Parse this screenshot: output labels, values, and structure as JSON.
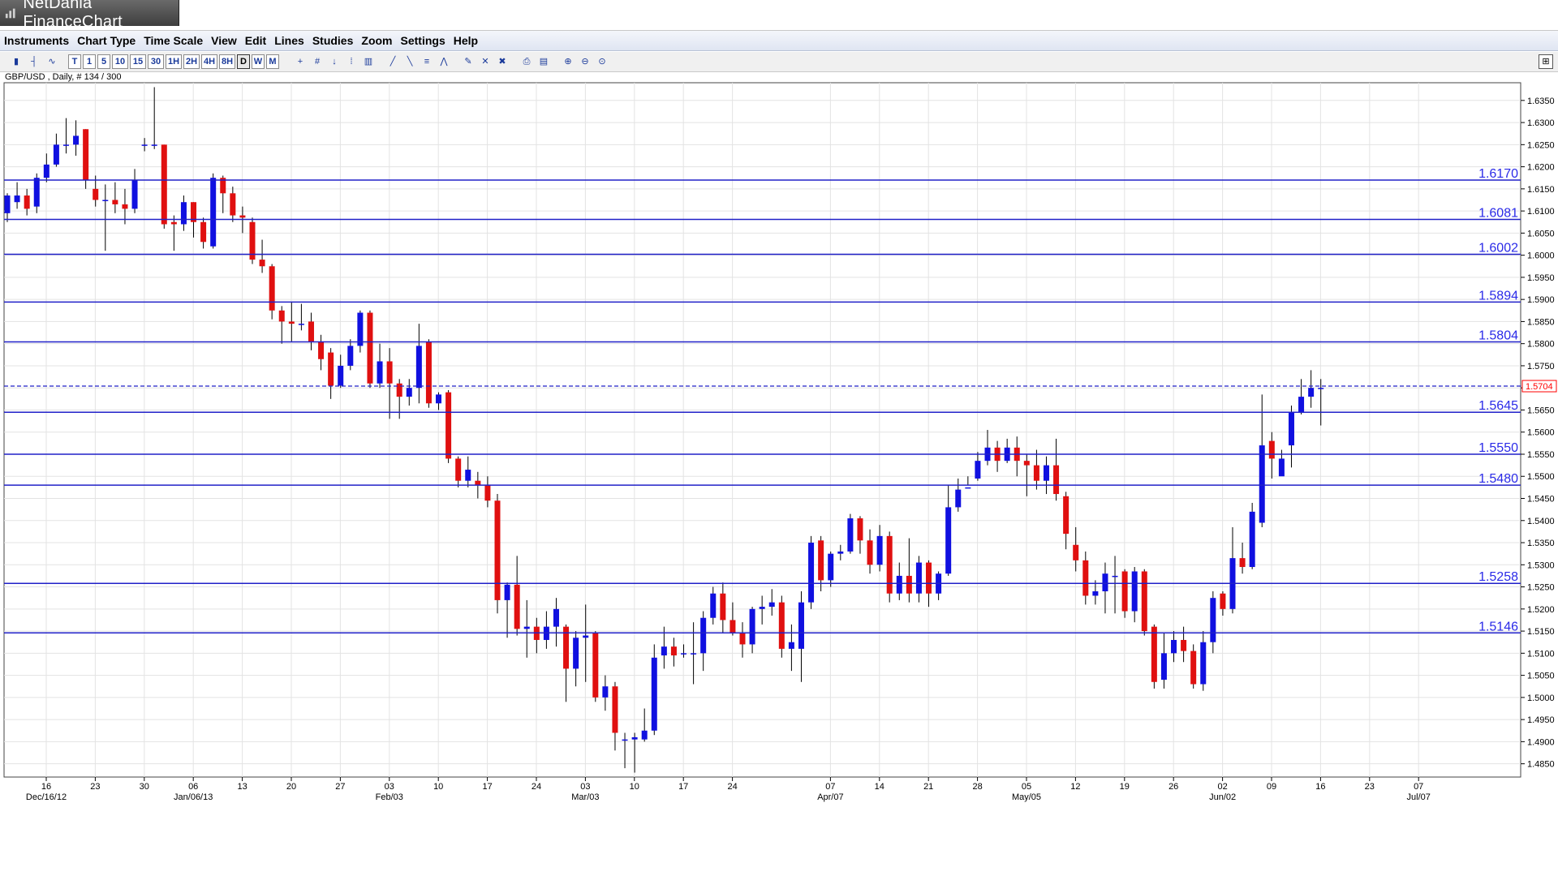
{
  "window": {
    "title": "NetDania FinanceChart"
  },
  "menu": [
    "Instruments",
    "Chart Type",
    "Time Scale",
    "View",
    "Edit",
    "Lines",
    "Studies",
    "Zoom",
    "Settings",
    "Help"
  ],
  "toolbar": {
    "periods": [
      "T",
      "1",
      "5",
      "10",
      "15",
      "30",
      "1H",
      "2H",
      "4H",
      "8H",
      "D",
      "W",
      "M"
    ],
    "selected_period": "D"
  },
  "instrument": {
    "label": "GBP/USD , Daily, # 134 / 300"
  },
  "chart_data": {
    "type": "candlestick",
    "title": "",
    "xlabel": "",
    "ylabel": "",
    "ylim": [
      1.482,
      1.639
    ],
    "y_ticks": [
      "1.6350",
      "1.6300",
      "1.6250",
      "1.6200",
      "1.6150",
      "1.6100",
      "1.6050",
      "1.6000",
      "1.5950",
      "1.5900",
      "1.5850",
      "1.5800",
      "1.5750",
      "1.5700",
      "1.5650",
      "1.5600",
      "1.5550",
      "1.5500",
      "1.5450",
      "1.5400",
      "1.5350",
      "1.5300",
      "1.5250",
      "1.5200",
      "1.5150",
      "1.5100",
      "1.5050",
      "1.5000",
      "1.4950",
      "1.4900",
      "1.4850"
    ],
    "x_ticks": [
      {
        "week": 0,
        "day": "16",
        "month": "Dec/16/12"
      },
      {
        "week": 1,
        "day": "23",
        "month": ""
      },
      {
        "week": 2,
        "day": "30",
        "month": ""
      },
      {
        "week": 3,
        "day": "06",
        "month": "Jan/06/13"
      },
      {
        "week": 4,
        "day": "13",
        "month": ""
      },
      {
        "week": 5,
        "day": "20",
        "month": ""
      },
      {
        "week": 6,
        "day": "27",
        "month": ""
      },
      {
        "week": 7,
        "day": "03",
        "month": "Feb/03"
      },
      {
        "week": 8,
        "day": "10",
        "month": ""
      },
      {
        "week": 9,
        "day": "17",
        "month": ""
      },
      {
        "week": 10,
        "day": "24",
        "month": ""
      },
      {
        "week": 11,
        "day": "03",
        "month": "Mar/03"
      },
      {
        "week": 12,
        "day": "10",
        "month": ""
      },
      {
        "week": 13,
        "day": "17",
        "month": ""
      },
      {
        "week": 14,
        "day": "24",
        "month": ""
      },
      {
        "week": 16,
        "day": "07",
        "month": "Apr/07"
      },
      {
        "week": 17,
        "day": "14",
        "month": ""
      },
      {
        "week": 18,
        "day": "21",
        "month": ""
      },
      {
        "week": 19,
        "day": "28",
        "month": ""
      },
      {
        "week": 20,
        "day": "05",
        "month": "May/05"
      },
      {
        "week": 21,
        "day": "12",
        "month": ""
      },
      {
        "week": 22,
        "day": "19",
        "month": ""
      },
      {
        "week": 23,
        "day": "26",
        "month": ""
      },
      {
        "week": 24,
        "day": "02",
        "month": "Jun/02"
      },
      {
        "week": 25,
        "day": "09",
        "month": ""
      },
      {
        "week": 26,
        "day": "16",
        "month": ""
      },
      {
        "week": 27,
        "day": "23",
        "month": ""
      },
      {
        "week": 28,
        "day": "07",
        "month": "Jul/07"
      }
    ],
    "horizontal_lines": [
      {
        "label": "1.6170",
        "value": 1.617
      },
      {
        "label": "1.6081",
        "value": 1.6081
      },
      {
        "label": "1.6002",
        "value": 1.6002
      },
      {
        "label": "1.5894",
        "value": 1.5894
      },
      {
        "label": "1.5804",
        "value": 1.5804
      },
      {
        "label": "1.5645",
        "value": 1.5645
      },
      {
        "label": "1.5550",
        "value": 1.555
      },
      {
        "label": "1.5480",
        "value": 1.548
      },
      {
        "label": "1.5258",
        "value": 1.5258
      },
      {
        "label": "1.5146",
        "value": 1.5146
      }
    ],
    "current_price": {
      "label": "1.5704",
      "value": 1.5704
    },
    "colors": {
      "up": "#1010e0",
      "down": "#e01010",
      "level": "#2020c8",
      "level_label": "#2a2ae8",
      "current": "#ff0000",
      "grid": "#e3e3e3",
      "wick": "#000000"
    },
    "candles": [
      [
        1.6095,
        1.6135,
        1.6075,
        1.614
      ],
      [
        1.612,
        1.6135,
        1.6105,
        1.6165
      ],
      [
        1.6135,
        1.6105,
        1.609,
        1.615
      ],
      [
        1.611,
        1.6175,
        1.6095,
        1.6185
      ],
      [
        1.6175,
        1.6205,
        1.6165,
        1.623
      ],
      [
        1.6205,
        1.625,
        1.62,
        1.6275
      ],
      [
        1.625,
        1.625,
        1.623,
        1.631
      ],
      [
        1.625,
        1.627,
        1.6225,
        1.6305
      ],
      [
        1.6285,
        1.617,
        1.615,
        1.6285
      ],
      [
        1.615,
        1.6125,
        1.611,
        1.618
      ],
      [
        1.6125,
        1.6125,
        1.601,
        1.616
      ],
      [
        1.6125,
        1.6115,
        1.6095,
        1.6165
      ],
      [
        1.6115,
        1.6105,
        1.607,
        1.615
      ],
      [
        1.6105,
        1.617,
        1.6095,
        1.6195
      ],
      [
        1.625,
        1.625,
        1.6235,
        1.6265
      ],
      [
        1.625,
        1.625,
        1.624,
        1.638
      ],
      [
        1.625,
        1.607,
        1.606,
        1.625
      ],
      [
        1.6075,
        1.607,
        1.601,
        1.609
      ],
      [
        1.607,
        1.612,
        1.6055,
        1.6135
      ],
      [
        1.612,
        1.6075,
        1.604,
        1.612
      ],
      [
        1.6075,
        1.603,
        1.6015,
        1.6085
      ],
      [
        1.602,
        1.6175,
        1.6015,
        1.6185
      ],
      [
        1.6175,
        1.614,
        1.6095,
        1.618
      ],
      [
        1.614,
        1.609,
        1.6075,
        1.6155
      ],
      [
        1.609,
        1.6085,
        1.605,
        1.611
      ],
      [
        1.6075,
        1.599,
        1.598,
        1.6085
      ],
      [
        1.599,
        1.5975,
        1.596,
        1.6035
      ],
      [
        1.5975,
        1.5875,
        1.5855,
        1.598
      ],
      [
        1.5875,
        1.585,
        1.58,
        1.5885
      ],
      [
        1.585,
        1.5845,
        1.5805,
        1.5895
      ],
      [
        1.5845,
        1.5845,
        1.583,
        1.589
      ],
      [
        1.585,
        1.5805,
        1.5785,
        1.587
      ],
      [
        1.5805,
        1.5765,
        1.574,
        1.582
      ],
      [
        1.578,
        1.5705,
        1.5675,
        1.579
      ],
      [
        1.5705,
        1.575,
        1.57,
        1.5775
      ],
      [
        1.575,
        1.5795,
        1.574,
        1.581
      ],
      [
        1.5795,
        1.587,
        1.578,
        1.5875
      ],
      [
        1.587,
        1.571,
        1.57,
        1.5875
      ],
      [
        1.571,
        1.576,
        1.57,
        1.58
      ],
      [
        1.576,
        1.571,
        1.563,
        1.579
      ],
      [
        1.571,
        1.568,
        1.563,
        1.572
      ],
      [
        1.568,
        1.57,
        1.566,
        1.572
      ],
      [
        1.57,
        1.5795,
        1.5665,
        1.5845
      ],
      [
        1.5805,
        1.5665,
        1.5655,
        1.581
      ],
      [
        1.5665,
        1.5685,
        1.565,
        1.569
      ],
      [
        1.569,
        1.554,
        1.553,
        1.5695
      ],
      [
        1.554,
        1.549,
        1.5475,
        1.5545
      ],
      [
        1.549,
        1.5515,
        1.5475,
        1.5545
      ],
      [
        1.549,
        1.548,
        1.545,
        1.551
      ],
      [
        1.548,
        1.5445,
        1.543,
        1.55
      ],
      [
        1.5445,
        1.522,
        1.519,
        1.546
      ],
      [
        1.522,
        1.5255,
        1.5135,
        1.526
      ],
      [
        1.5255,
        1.5155,
        1.514,
        1.532
      ],
      [
        1.5155,
        1.516,
        1.509,
        1.522
      ],
      [
        1.516,
        1.513,
        1.51,
        1.518
      ],
      [
        1.513,
        1.516,
        1.511,
        1.5195
      ],
      [
        1.516,
        1.52,
        1.5115,
        1.5225
      ],
      [
        1.516,
        1.5065,
        1.499,
        1.5165
      ],
      [
        1.5065,
        1.5135,
        1.5025,
        1.515
      ],
      [
        1.5135,
        1.514,
        1.5035,
        1.521
      ],
      [
        1.5145,
        1.5,
        1.499,
        1.515
      ],
      [
        1.5,
        1.5025,
        1.497,
        1.505
      ],
      [
        1.5025,
        1.492,
        1.488,
        1.5035
      ],
      [
        1.4905,
        1.4905,
        1.484,
        1.492
      ],
      [
        1.4905,
        1.491,
        1.483,
        1.492
      ],
      [
        1.4905,
        1.4925,
        1.49,
        1.4975
      ],
      [
        1.4925,
        1.509,
        1.4915,
        1.512
      ],
      [
        1.5095,
        1.5115,
        1.5065,
        1.516
      ],
      [
        1.5115,
        1.5095,
        1.507,
        1.5135
      ],
      [
        1.51,
        1.51,
        1.509,
        1.512
      ],
      [
        1.51,
        1.51,
        1.503,
        1.517
      ],
      [
        1.51,
        1.518,
        1.506,
        1.5195
      ],
      [
        1.518,
        1.5235,
        1.5165,
        1.525
      ],
      [
        1.5235,
        1.5175,
        1.5145,
        1.526
      ],
      [
        1.5175,
        1.5145,
        1.514,
        1.5215
      ],
      [
        1.5145,
        1.512,
        1.509,
        1.517
      ],
      [
        1.512,
        1.52,
        1.51,
        1.5205
      ],
      [
        1.52,
        1.5205,
        1.5165,
        1.523
      ],
      [
        1.5205,
        1.5215,
        1.5185,
        1.5245
      ],
      [
        1.5215,
        1.511,
        1.509,
        1.523
      ],
      [
        1.511,
        1.5125,
        1.506,
        1.5165
      ],
      [
        1.511,
        1.5215,
        1.5035,
        1.524
      ],
      [
        1.5215,
        1.535,
        1.52,
        1.5365
      ],
      [
        1.5355,
        1.5265,
        1.524,
        1.5365
      ],
      [
        1.5265,
        1.5325,
        1.525,
        1.533
      ],
      [
        1.5325,
        1.533,
        1.531,
        1.5345
      ],
      [
        1.533,
        1.5405,
        1.5325,
        1.5415
      ],
      [
        1.5405,
        1.5355,
        1.5325,
        1.541
      ],
      [
        1.5355,
        1.53,
        1.528,
        1.538
      ],
      [
        1.53,
        1.5365,
        1.5285,
        1.539
      ],
      [
        1.5365,
        1.5235,
        1.5215,
        1.5375
      ],
      [
        1.5235,
        1.5275,
        1.522,
        1.5305
      ],
      [
        1.5275,
        1.5235,
        1.5215,
        1.536
      ],
      [
        1.5235,
        1.5305,
        1.5215,
        1.532
      ],
      [
        1.5305,
        1.5235,
        1.5205,
        1.531
      ],
      [
        1.5235,
        1.528,
        1.522,
        1.5285
      ],
      [
        1.528,
        1.543,
        1.5275,
        1.548
      ],
      [
        1.543,
        1.547,
        1.542,
        1.5495
      ],
      [
        1.5475,
        1.5475,
        1.548,
        1.55
      ],
      [
        1.5495,
        1.5535,
        1.549,
        1.5555
      ],
      [
        1.5535,
        1.5565,
        1.5525,
        1.5605
      ],
      [
        1.5565,
        1.5535,
        1.551,
        1.558
      ],
      [
        1.5535,
        1.5565,
        1.553,
        1.5585
      ],
      [
        1.5565,
        1.5535,
        1.55,
        1.559
      ],
      [
        1.5535,
        1.5525,
        1.5455,
        1.555
      ],
      [
        1.5525,
        1.549,
        1.547,
        1.556
      ],
      [
        1.549,
        1.5525,
        1.546,
        1.5545
      ],
      [
        1.5525,
        1.546,
        1.5445,
        1.5585
      ],
      [
        1.5455,
        1.537,
        1.5335,
        1.5465
      ],
      [
        1.5345,
        1.531,
        1.5285,
        1.5385
      ],
      [
        1.531,
        1.523,
        1.521,
        1.533
      ],
      [
        1.523,
        1.524,
        1.521,
        1.5265
      ],
      [
        1.524,
        1.528,
        1.519,
        1.5305
      ],
      [
        1.5275,
        1.5275,
        1.519,
        1.532
      ],
      [
        1.5285,
        1.5195,
        1.518,
        1.529
      ],
      [
        1.5195,
        1.5285,
        1.517,
        1.5295
      ],
      [
        1.5285,
        1.515,
        1.514,
        1.529
      ],
      [
        1.516,
        1.5035,
        1.502,
        1.5165
      ],
      [
        1.504,
        1.51,
        1.502,
        1.5145
      ],
      [
        1.51,
        1.513,
        1.508,
        1.515
      ],
      [
        1.513,
        1.5105,
        1.508,
        1.516
      ],
      [
        1.5105,
        1.503,
        1.502,
        1.512
      ],
      [
        1.503,
        1.5125,
        1.5015,
        1.515
      ],
      [
        1.5125,
        1.5225,
        1.51,
        1.524
      ],
      [
        1.5235,
        1.52,
        1.5185,
        1.524
      ],
      [
        1.52,
        1.5315,
        1.519,
        1.5385
      ],
      [
        1.5315,
        1.5295,
        1.528,
        1.535
      ],
      [
        1.5295,
        1.542,
        1.529,
        1.544
      ],
      [
        1.5395,
        1.557,
        1.5385,
        1.5685
      ],
      [
        1.558,
        1.554,
        1.5495,
        1.56
      ],
      [
        1.55,
        1.554,
        1.551,
        1.556
      ],
      [
        1.557,
        1.5645,
        1.552,
        1.566
      ],
      [
        1.5645,
        1.568,
        1.564,
        1.572
      ],
      [
        1.568,
        1.57,
        1.5655,
        1.574
      ],
      [
        1.57,
        1.57,
        1.5615,
        1.572
      ]
    ]
  }
}
